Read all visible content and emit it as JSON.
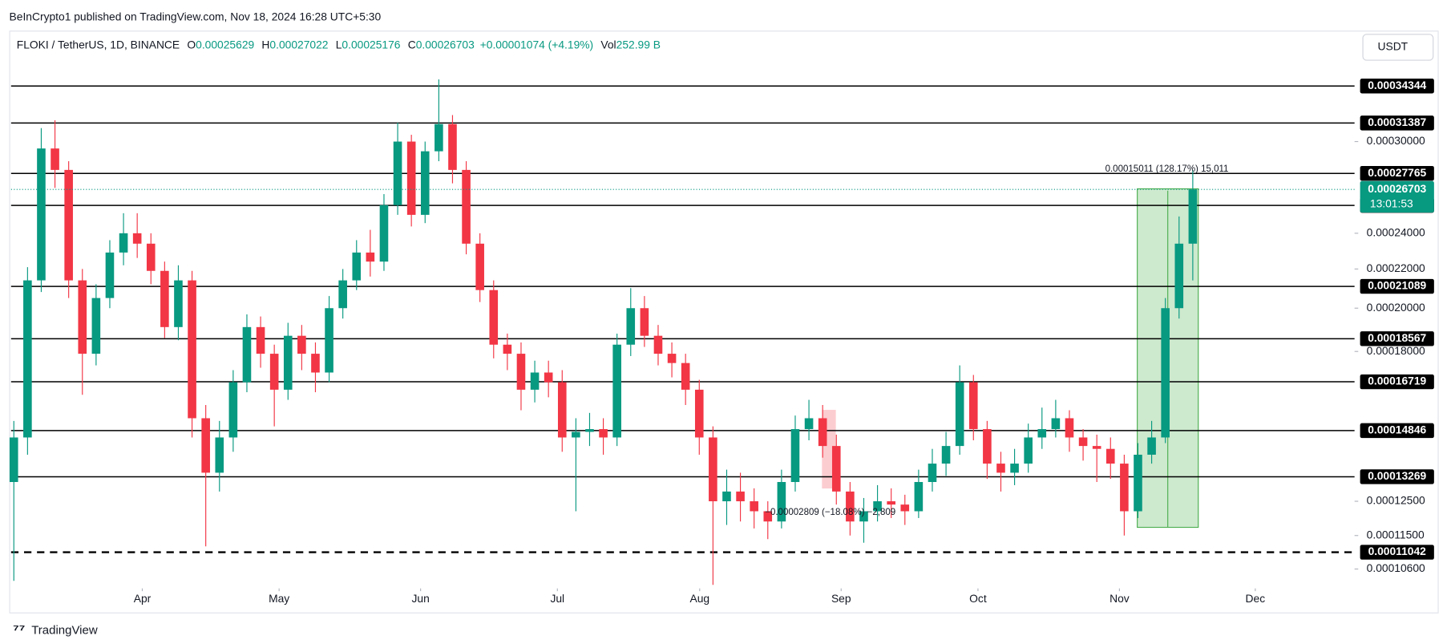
{
  "header": {
    "published": "BeInCrypto1 published on TradingView.com, Nov 18, 2024 16:28 UTC+5:30",
    "currency": "USDT",
    "brand": "TradingView"
  },
  "chart_data": {
    "type": "candlestick",
    "symbol": "FLOKI / TetherUS, 1D, BINANCE",
    "legend": [
      {
        "label": "O",
        "value": 0.00025629
      },
      {
        "label": "H",
        "value": 0.00027022
      },
      {
        "label": "L",
        "value": 0.00025176
      },
      {
        "label": "C",
        "value": 0.00026703
      }
    ],
    "change": "+0.00001074 (+4.19%)",
    "volume_label": "Vol",
    "volume": "252.99 B",
    "categories": [
      null,
      null,
      null,
      null,
      null,
      null,
      null,
      null,
      null,
      null,
      null,
      null,
      null,
      null,
      null,
      null,
      null,
      null,
      null,
      null,
      null,
      null,
      null,
      null,
      null,
      null,
      null,
      null,
      null,
      null,
      null,
      null,
      null,
      null,
      null,
      null,
      null,
      null,
      null,
      null,
      null,
      null,
      null,
      null,
      null,
      null,
      null,
      null,
      null,
      null,
      null,
      null,
      null,
      null,
      null,
      null,
      null,
      null,
      null,
      null,
      null,
      null,
      null,
      null,
      null,
      null,
      null,
      null,
      null,
      null,
      null,
      null,
      null,
      null,
      null,
      null,
      null,
      null,
      null,
      null,
      null,
      null,
      null,
      null,
      null,
      null,
      null
    ],
    "open": [
      0.000131,
      0.000146,
      0.000214,
      0.000295,
      0.00028,
      0.000214,
      0.000179,
      0.000205,
      0.000229,
      0.00024,
      0.000234,
      0.000219,
      0.000191,
      0.000214,
      0.000153,
      0.000134,
      0.000146,
      0.000167,
      0.000191,
      0.000179,
      0.000164,
      0.000187,
      0.000179,
      0.000171,
      0.0002,
      0.000214,
      0.000229,
      0.000224,
      0.000257,
      0.0003,
      0.000251,
      0.000293,
      0.000313,
      0.00028,
      0.000234,
      0.000209,
      0.000183,
      0.000179,
      0.000164,
      0.000171,
      0.000167,
      0.000146,
      0.000148,
      0.000149,
      0.000146,
      0.000183,
      0.0002,
      0.000187,
      0.000179,
      0.000175,
      0.000164,
      0.000146,
      0.000125,
      0.000128,
      0.000125,
      0.000122,
      0.000119,
      0.000131,
      0.000149,
      0.000153,
      0.000143,
      0.000128,
      0.000119,
      0.000122,
      0.000125,
      0.000124,
      0.000122,
      0.000131,
      0.000137,
      0.000143,
      0.000167,
      0.000149,
      0.000137,
      0.000134,
      0.000137,
      0.000146,
      0.000149,
      0.000153,
      0.000146,
      0.000143,
      0.000142,
      0.000137,
      0.000122,
      0.00014,
      0.000146,
      0.0002,
      0.000234
    ],
    "high": [
      0.000152,
      0.000221,
      0.00031,
      0.000316,
      0.000286,
      0.00022,
      0.000212,
      0.000236,
      0.000252,
      0.000252,
      0.00024,
      0.000224,
      0.000222,
      0.000219,
      0.000158,
      0.000152,
      0.000172,
      0.000197,
      0.000196,
      0.000183,
      0.000193,
      0.000192,
      0.000184,
      0.000206,
      0.00022,
      0.000236,
      0.000242,
      0.000264,
      0.000314,
      0.000305,
      0.0003,
      0.000349,
      0.00032,
      0.000286,
      0.00024,
      0.000214,
      0.000188,
      0.000184,
      0.000176,
      0.000176,
      0.000172,
      0.000153,
      0.000155,
      0.000153,
      0.000188,
      0.00021,
      0.000206,
      0.000192,
      0.000184,
      0.000179,
      0.000168,
      0.00015,
      0.000135,
      0.000134,
      0.000129,
      0.000125,
      0.000135,
      0.000154,
      0.00016,
      0.000158,
      0.000147,
      0.000131,
      0.000126,
      0.00013,
      0.000129,
      0.000127,
      0.000135,
      0.000142,
      0.000148,
      0.000174,
      0.00017,
      0.000152,
      0.000141,
      0.000142,
      0.000151,
      0.000157,
      0.00016,
      0.000156,
      0.000149,
      0.000147,
      0.000146,
      0.00014,
      0.000144,
      0.000152,
      0.000205,
      0.00025,
      0.00028
    ],
    "low": [
      0.000103,
      0.00014,
      0.000208,
      0.000268,
      0.000205,
      0.000162,
      0.000174,
      0.0002,
      0.000222,
      0.000226,
      0.000212,
      0.000186,
      0.000185,
      0.000146,
      0.000112,
      0.000128,
      0.000141,
      0.000163,
      0.000173,
      0.00015,
      0.00016,
      0.000172,
      0.000163,
      0.000167,
      0.000195,
      0.000209,
      0.000216,
      0.000219,
      0.000251,
      0.000244,
      0.000246,
      0.000286,
      0.000271,
      0.000228,
      0.000203,
      0.000177,
      0.000172,
      0.000156,
      0.000159,
      0.000161,
      0.000141,
      0.000122,
      0.000143,
      0.00014,
      0.000143,
      0.000178,
      0.000182,
      0.000174,
      0.000169,
      0.000158,
      0.00014,
      0.000102,
      0.000118,
      0.000119,
      0.000117,
      0.000114,
      0.000117,
      0.000128,
      0.000145,
      0.000139,
      0.000124,
      0.000115,
      0.000113,
      0.000119,
      0.00012,
      0.000118,
      0.00012,
      0.000128,
      0.000133,
      0.00014,
      0.000145,
      0.000132,
      0.000128,
      0.00013,
      0.000134,
      0.000142,
      0.000146,
      0.000141,
      0.000138,
      0.000131,
      0.000132,
      0.000115,
      0.00012,
      0.000137,
      0.000144,
      0.000195,
      0.000214
    ],
    "close": [
      0.000146,
      0.000214,
      0.000295,
      0.00028,
      0.000214,
      0.000179,
      0.000205,
      0.000229,
      0.00024,
      0.000234,
      0.000219,
      0.000191,
      0.000214,
      0.000153,
      0.000134,
      0.000146,
      0.000167,
      0.000191,
      0.000179,
      0.000164,
      0.000187,
      0.000179,
      0.000171,
      0.0002,
      0.000214,
      0.000229,
      0.000224,
      0.000257,
      0.0003,
      0.000251,
      0.000293,
      0.000313,
      0.00028,
      0.000234,
      0.000209,
      0.000183,
      0.000179,
      0.000164,
      0.000171,
      0.000167,
      0.000146,
      0.000148,
      0.000149,
      0.000146,
      0.000183,
      0.0002,
      0.000187,
      0.000179,
      0.000175,
      0.000164,
      0.000146,
      0.000125,
      0.000128,
      0.000125,
      0.000122,
      0.000119,
      0.000131,
      0.000149,
      0.000153,
      0.000143,
      0.000128,
      0.000119,
      0.000122,
      0.000125,
      0.000124,
      0.000122,
      0.000131,
      0.000137,
      0.000143,
      0.000167,
      0.000149,
      0.000137,
      0.000134,
      0.000137,
      0.000146,
      0.000149,
      0.000153,
      0.000146,
      0.000143,
      0.000142,
      0.000137,
      0.000122,
      0.00014,
      0.000146,
      0.0002,
      0.000234,
      0.00026703
    ],
    "up_color": "#089981",
    "down_color": "#f23645",
    "xlim": [
      -0.2,
      97.8
    ],
    "xticks": [
      {
        "value": 9.37,
        "label": "Apr"
      },
      {
        "value": 19.35,
        "label": "May"
      },
      {
        "value": 29.67,
        "label": "Jun"
      },
      {
        "value": 39.65,
        "label": "Jul"
      },
      {
        "value": 50.03,
        "label": "Aug"
      },
      {
        "value": 60.35,
        "label": "Sep"
      },
      {
        "value": 70.33,
        "label": "Oct"
      },
      {
        "value": 80.65,
        "label": "Nov"
      },
      {
        "value": 90.56,
        "label": "Dec"
      }
    ],
    "ylim": [
      0.0001018,
      0.000393
    ],
    "log_scale": true,
    "yticks": [
      {
        "value": 0.0003,
        "label": "0.00030000"
      },
      {
        "value": 0.00024,
        "label": "0.00024000"
      },
      {
        "value": 0.00022,
        "label": "0.00022000"
      },
      {
        "value": 0.0002,
        "label": "0.00020000"
      },
      {
        "value": 0.00018,
        "label": "0.00018000"
      },
      {
        "value": 0.000125,
        "label": "0.00012500"
      },
      {
        "value": 0.000115,
        "label": "0.00011500"
      },
      {
        "value": 0.000106,
        "label": "0.00010600"
      }
    ],
    "levels": [
      {
        "value": 0.00034344
      },
      {
        "value": 0.00031387
      },
      {
        "value": 0.00027765
      },
      {
        "value": 0.00025683
      },
      {
        "value": 0.00021089
      },
      {
        "value": 0.00018567
      },
      {
        "value": 0.00016719
      },
      {
        "value": 0.00014846
      },
      {
        "value": 0.00013269
      },
      {
        "value": 0.00011042,
        "dashed": true
      }
    ],
    "last_price": 0.00026703,
    "countdown": "13:01:53",
    "annotations": [
      "0.00015011 (128.17%) 15,011",
      "−0.00002809 (−18.08%) −2,809"
    ]
  }
}
